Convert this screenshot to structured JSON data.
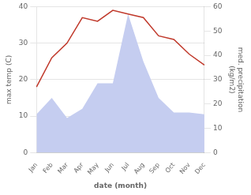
{
  "chart_data": {
    "type": "line",
    "categories": [
      "Jan",
      "Feb",
      "Mar",
      "Apr",
      "May",
      "Jun",
      "Jul",
      "Aug",
      "Sep",
      "Oct",
      "Nov",
      "Dec"
    ],
    "series": [
      {
        "type": "area",
        "color": "#c5cdf0",
        "values": [
          10.5,
          15,
          9.5,
          12,
          19,
          19,
          38,
          25,
          15,
          11,
          11,
          10.5
        ]
      },
      {
        "type": "line",
        "color": "#c0392b",
        "values": [
          18,
          26,
          30,
          37,
          36,
          39,
          38,
          37,
          32,
          31,
          27,
          24
        ]
      }
    ],
    "xlabel": "date (month)",
    "ylabel": "max temp (C)",
    "y2label": "med. precipitation\n(kg/m2)",
    "ylim": [
      0,
      40
    ],
    "yticks": [
      0,
      10,
      20,
      30,
      40
    ],
    "y2lim": [
      0,
      60
    ],
    "y2ticks": [
      0,
      10,
      20,
      30,
      40,
      50,
      60
    ],
    "grid": true
  }
}
